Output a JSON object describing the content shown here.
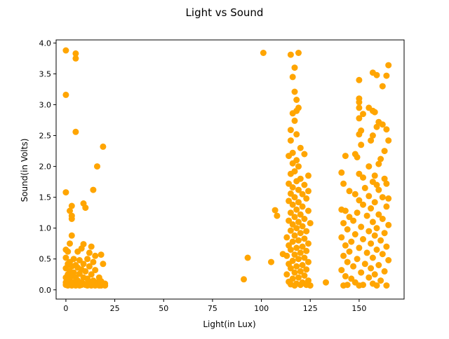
{
  "chart_data": {
    "type": "scatter",
    "title": "Light vs Sound",
    "xlabel": "Light(in Lux)",
    "ylabel": "Sound(in Volts)",
    "xlim": [
      -5,
      173
    ],
    "ylim": [
      -0.15,
      4.05
    ],
    "xticks": [
      0,
      25,
      50,
      75,
      100,
      125,
      150
    ],
    "yticks": [
      0.0,
      0.5,
      1.0,
      1.5,
      2.0,
      2.5,
      3.0,
      3.5,
      4.0
    ],
    "xtick_labels": [
      "0",
      "25",
      "50",
      "75",
      "100",
      "125",
      "150"
    ],
    "ytick_labels": [
      "0.0",
      "0.5",
      "1.0",
      "1.5",
      "2.0",
      "2.5",
      "3.0",
      "3.5",
      "4.0"
    ],
    "grid": false,
    "legend": "none",
    "marker_color": "#FFA500",
    "series": [
      {
        "points": [
          [
            0,
            3.88
          ],
          [
            0,
            3.16
          ],
          [
            5,
            3.83
          ],
          [
            5,
            3.75
          ],
          [
            5,
            2.56
          ],
          [
            19,
            2.32
          ],
          [
            16,
            2.0
          ],
          [
            14,
            1.62
          ],
          [
            0,
            1.58
          ],
          [
            9,
            1.4
          ],
          [
            10,
            1.33
          ],
          [
            3,
            1.36
          ],
          [
            2,
            1.28
          ],
          [
            3,
            1.2
          ],
          [
            3,
            1.15
          ],
          [
            3,
            0.88
          ],
          [
            2,
            0.75
          ],
          [
            9,
            0.74
          ],
          [
            13,
            0.7
          ],
          [
            0,
            0.65
          ],
          [
            8,
            0.67
          ],
          [
            1,
            0.62
          ],
          [
            6,
            0.62
          ],
          [
            12,
            0.6
          ],
          [
            18,
            0.57
          ],
          [
            15,
            0.55
          ],
          [
            0,
            0.52
          ],
          [
            4,
            0.5
          ],
          [
            7,
            0.48
          ],
          [
            11,
            0.5
          ],
          [
            2,
            0.45
          ],
          [
            14,
            0.45
          ],
          [
            1,
            0.42
          ],
          [
            5,
            0.4
          ],
          [
            9,
            0.42
          ],
          [
            19,
            0.42
          ],
          [
            3,
            0.38
          ],
          [
            6,
            0.36
          ],
          [
            12,
            0.38
          ],
          [
            0,
            0.35
          ],
          [
            8,
            0.33
          ],
          [
            15,
            0.32
          ],
          [
            2,
            0.3
          ],
          [
            4,
            0.28
          ],
          [
            10,
            0.3
          ],
          [
            1,
            0.25
          ],
          [
            7,
            0.26
          ],
          [
            13,
            0.25
          ],
          [
            3,
            0.22
          ],
          [
            17,
            0.2
          ],
          [
            0,
            0.2
          ],
          [
            5,
            0.2
          ],
          [
            9,
            0.2
          ],
          [
            11,
            0.18
          ],
          [
            2,
            0.15
          ],
          [
            6,
            0.15
          ],
          [
            14,
            0.15
          ],
          [
            18,
            0.14
          ],
          [
            0,
            0.12
          ],
          [
            4,
            0.12
          ],
          [
            8,
            0.12
          ],
          [
            12,
            0.12
          ],
          [
            16,
            0.12
          ],
          [
            20,
            0.1
          ],
          [
            1,
            0.1
          ],
          [
            3,
            0.1
          ],
          [
            5,
            0.1
          ],
          [
            7,
            0.1
          ],
          [
            9,
            0.1
          ],
          [
            11,
            0.1
          ],
          [
            13,
            0.1
          ],
          [
            15,
            0.1
          ],
          [
            17,
            0.1
          ],
          [
            19,
            0.08
          ],
          [
            0,
            0.08
          ],
          [
            2,
            0.08
          ],
          [
            4,
            0.08
          ],
          [
            6,
            0.08
          ],
          [
            8,
            0.08
          ],
          [
            10,
            0.08
          ],
          [
            12,
            0.08
          ],
          [
            14,
            0.08
          ],
          [
            16,
            0.08
          ],
          [
            18,
            0.07
          ],
          [
            20,
            0.07
          ],
          [
            1,
            0.07
          ],
          [
            3,
            0.07
          ],
          [
            5,
            0.07
          ],
          [
            7,
            0.07
          ],
          [
            11,
            0.07
          ],
          [
            13,
            0.07
          ],
          [
            15,
            0.07
          ],
          [
            17,
            0.07
          ],
          [
            101,
            3.84
          ],
          [
            93,
            0.52
          ],
          [
            91,
            0.17
          ],
          [
            105,
            0.45
          ],
          [
            107,
            1.29
          ],
          [
            108,
            1.2
          ],
          [
            111,
            0.58
          ],
          [
            115,
            3.81
          ],
          [
            119,
            3.84
          ],
          [
            117,
            3.6
          ],
          [
            116,
            3.45
          ],
          [
            117,
            3.21
          ],
          [
            118,
            3.08
          ],
          [
            119,
            2.95
          ],
          [
            118,
            2.9
          ],
          [
            116,
            2.86
          ],
          [
            117,
            2.74
          ],
          [
            115,
            2.59
          ],
          [
            118,
            2.52
          ],
          [
            115,
            2.42
          ],
          [
            120,
            2.3
          ],
          [
            116,
            2.22
          ],
          [
            122,
            2.2
          ],
          [
            114,
            2.17
          ],
          [
            118,
            2.1
          ],
          [
            116,
            2.05
          ],
          [
            119,
            2.0
          ],
          [
            117,
            1.92
          ],
          [
            115,
            1.88
          ],
          [
            124,
            1.85
          ],
          [
            120,
            1.8
          ],
          [
            118,
            1.76
          ],
          [
            114,
            1.72
          ],
          [
            122,
            1.7
          ],
          [
            116,
            1.66
          ],
          [
            119,
            1.62
          ],
          [
            124,
            1.6
          ],
          [
            115,
            1.56
          ],
          [
            121,
            1.55
          ],
          [
            117,
            1.5
          ],
          [
            123,
            1.48
          ],
          [
            114,
            1.44
          ],
          [
            119,
            1.42
          ],
          [
            116,
            1.38
          ],
          [
            121,
            1.35
          ],
          [
            118,
            1.3
          ],
          [
            124,
            1.28
          ],
          [
            115,
            1.25
          ],
          [
            120,
            1.22
          ],
          [
            117,
            1.18
          ],
          [
            122,
            1.15
          ],
          [
            114,
            1.12
          ],
          [
            119,
            1.1
          ],
          [
            116,
            1.06
          ],
          [
            125,
            1.08
          ],
          [
            121,
            1.03
          ],
          [
            118,
            1.0
          ],
          [
            115,
            0.96
          ],
          [
            123,
            0.95
          ],
          [
            120,
            0.92
          ],
          [
            117,
            0.88
          ],
          [
            113,
            0.85
          ],
          [
            122,
            0.83
          ],
          [
            119,
            0.8
          ],
          [
            116,
            0.78
          ],
          [
            124,
            0.75
          ],
          [
            114,
            0.72
          ],
          [
            121,
            0.7
          ],
          [
            118,
            0.68
          ],
          [
            115,
            0.65
          ],
          [
            123,
            0.63
          ],
          [
            120,
            0.6
          ],
          [
            117,
            0.57
          ],
          [
            113,
            0.55
          ],
          [
            122,
            0.52
          ],
          [
            119,
            0.5
          ],
          [
            116,
            0.47
          ],
          [
            124,
            0.45
          ],
          [
            114,
            0.42
          ],
          [
            121,
            0.4
          ],
          [
            118,
            0.38
          ],
          [
            115,
            0.35
          ],
          [
            123,
            0.33
          ],
          [
            120,
            0.3
          ],
          [
            117,
            0.28
          ],
          [
            113,
            0.25
          ],
          [
            122,
            0.23
          ],
          [
            119,
            0.2
          ],
          [
            116,
            0.18
          ],
          [
            124,
            0.15
          ],
          [
            114,
            0.13
          ],
          [
            121,
            0.12
          ],
          [
            118,
            0.1
          ],
          [
            115,
            0.09
          ],
          [
            123,
            0.08
          ],
          [
            120,
            0.08
          ],
          [
            117,
            0.07
          ],
          [
            125,
            0.07
          ],
          [
            133,
            0.12
          ],
          [
            155,
            2.95
          ],
          [
            150,
            3.4
          ],
          [
            157,
            3.52
          ],
          [
            159,
            3.48
          ],
          [
            165,
            3.64
          ],
          [
            164,
            3.47
          ],
          [
            162,
            3.3
          ],
          [
            150,
            3.1
          ],
          [
            150,
            3.04
          ],
          [
            150,
            2.95
          ],
          [
            158,
            2.88
          ],
          [
            152,
            2.85
          ],
          [
            157,
            2.9
          ],
          [
            160,
            2.72
          ],
          [
            162,
            2.68
          ],
          [
            164,
            2.6
          ],
          [
            150,
            2.78
          ],
          [
            159,
            2.64
          ],
          [
            157,
            2.5
          ],
          [
            151,
            2.58
          ],
          [
            150,
            2.52
          ],
          [
            156,
            2.42
          ],
          [
            165,
            2.42
          ],
          [
            151,
            2.35
          ],
          [
            163,
            2.25
          ],
          [
            148,
            2.2
          ],
          [
            149,
            2.15
          ],
          [
            161,
            2.12
          ],
          [
            155,
            2.0
          ],
          [
            160,
            2.04
          ],
          [
            143,
            2.17
          ],
          [
            141,
            1.9
          ],
          [
            150,
            1.88
          ],
          [
            158,
            1.85
          ],
          [
            152,
            1.82
          ],
          [
            163,
            1.8
          ],
          [
            157,
            1.75
          ],
          [
            142,
            1.72
          ],
          [
            159,
            1.7
          ],
          [
            164,
            1.72
          ],
          [
            153,
            1.65
          ],
          [
            160,
            1.62
          ],
          [
            145,
            1.6
          ],
          [
            148,
            1.55
          ],
          [
            155,
            1.52
          ],
          [
            162,
            1.5
          ],
          [
            165,
            1.48
          ],
          [
            150,
            1.45
          ],
          [
            158,
            1.42
          ],
          [
            152,
            1.38
          ],
          [
            164,
            1.35
          ],
          [
            156,
            1.32
          ],
          [
            141,
            1.3
          ],
          [
            143,
            1.28
          ],
          [
            149,
            1.25
          ],
          [
            160,
            1.22
          ],
          [
            154,
            1.2
          ],
          [
            145,
            1.18
          ],
          [
            162,
            1.15
          ],
          [
            147,
            1.12
          ],
          [
            157,
            1.1
          ],
          [
            142,
            1.08
          ],
          [
            165,
            1.05
          ],
          [
            151,
            1.02
          ],
          [
            159,
            1.0
          ],
          [
            144,
            0.98
          ],
          [
            155,
            0.95
          ],
          [
            163,
            0.92
          ],
          [
            148,
            0.9
          ],
          [
            158,
            0.88
          ],
          [
            141,
            0.85
          ],
          [
            152,
            0.82
          ],
          [
            161,
            0.8
          ],
          [
            146,
            0.78
          ],
          [
            156,
            0.75
          ],
          [
            143,
            0.72
          ],
          [
            164,
            0.7
          ],
          [
            150,
            0.68
          ],
          [
            159,
            0.65
          ],
          [
            145,
            0.62
          ],
          [
            154,
            0.6
          ],
          [
            162,
            0.58
          ],
          [
            142,
            0.55
          ],
          [
            157,
            0.52
          ],
          [
            149,
            0.5
          ],
          [
            165,
            0.48
          ],
          [
            144,
            0.45
          ],
          [
            153,
            0.42
          ],
          [
            160,
            0.4
          ],
          [
            147,
            0.38
          ],
          [
            156,
            0.35
          ],
          [
            141,
            0.32
          ],
          [
            163,
            0.3
          ],
          [
            151,
            0.28
          ],
          [
            158,
            0.25
          ],
          [
            143,
            0.22
          ],
          [
            155,
            0.2
          ],
          [
            146,
            0.18
          ],
          [
            161,
            0.15
          ],
          [
            148,
            0.12
          ],
          [
            157,
            0.1
          ],
          [
            144,
            0.08
          ],
          [
            152,
            0.08
          ],
          [
            164,
            0.07
          ],
          [
            150,
            0.07
          ],
          [
            159,
            0.07
          ],
          [
            142,
            0.07
          ]
        ]
      }
    ]
  }
}
